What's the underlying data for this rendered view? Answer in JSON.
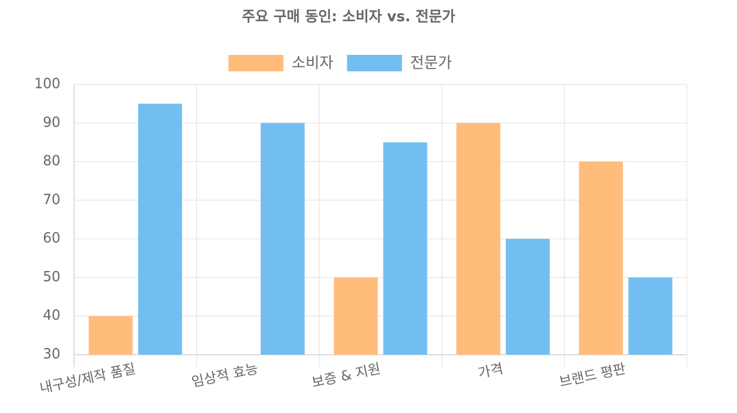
{
  "chart_data": {
    "type": "bar",
    "title": "주요 구매 동인: 소비자 vs. 전문가",
    "categories": [
      "내구성/제작 품질",
      "임상적 효능",
      "보증 & 지원",
      "가격",
      "브랜드 평판"
    ],
    "series": [
      {
        "name": "소비자",
        "color": "#ffbc7a",
        "border": "#ff9f40",
        "values": [
          40,
          30,
          50,
          90,
          80
        ]
      },
      {
        "name": "전문가",
        "color": "#72bef1",
        "border": "#36a2eb",
        "values": [
          95,
          90,
          85,
          60,
          50
        ]
      }
    ],
    "ylim": [
      30,
      100
    ],
    "yticks": [
      30,
      40,
      50,
      60,
      70,
      80,
      90,
      100
    ],
    "grid": true,
    "legend": "top"
  }
}
